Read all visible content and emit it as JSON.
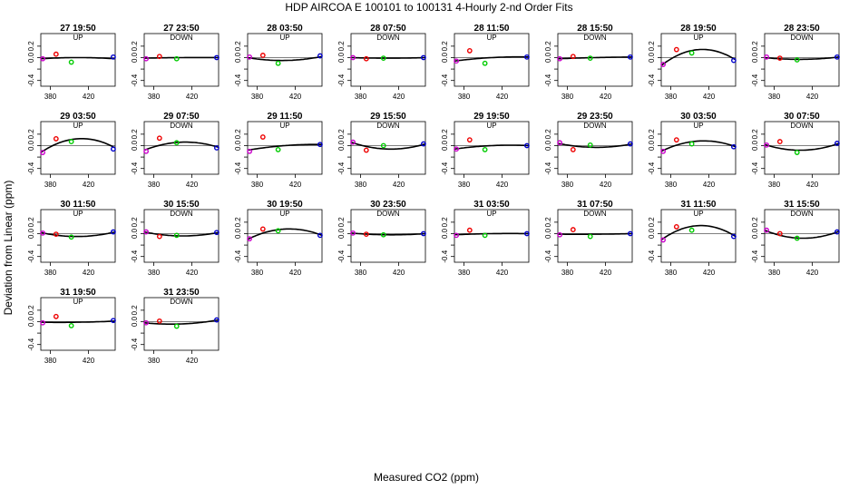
{
  "page_title": "HDP   AIRCOA E   100101 to 100131   4-Hourly 2-nd Order Fits",
  "ylabel": "Deviation from Linear (ppm)",
  "xlabel": "Measured CO2 (ppm)",
  "chart_data": {
    "type": "scatter",
    "title": "HDP   AIRCOA E   100101 to 100131   4-Hourly 2-nd Order Fits",
    "xlabel": "Measured CO2 (ppm)",
    "ylabel": "Deviation from Linear (ppm)",
    "xlim": [
      370,
      448
    ],
    "ylim": [
      -0.5,
      0.42
    ],
    "xticks": [
      380,
      420
    ],
    "xtick_labels": [
      "380",
      "420"
    ],
    "yticks": [
      -0.4,
      -0.2,
      0.0,
      0.2
    ],
    "ytick_labels": [
      "-0.4",
      "",
      "0.0",
      "0.2"
    ],
    "grid": false,
    "marker_colors": {
      "purple": "#cc00cc",
      "red": "#ee0000",
      "green": "#00cc00",
      "blue": "#0000cc"
    },
    "panels": [
      {
        "title": "27 19:50",
        "direction": "UP",
        "points": [
          [
            372,
            -0.02
          ],
          [
            386,
            0.06
          ],
          [
            402,
            -0.08
          ],
          [
            446,
            0.01
          ]
        ],
        "curve": [
          -0.02,
          0.0,
          -0.02
        ]
      },
      {
        "title": "27 23:50",
        "direction": "DOWN",
        "points": [
          [
            372,
            -0.02
          ],
          [
            386,
            0.02
          ],
          [
            404,
            -0.02
          ],
          [
            446,
            0.0
          ]
        ],
        "curve": [
          -0.01,
          0.0,
          0.0
        ]
      },
      {
        "title": "28 03:50",
        "direction": "UP",
        "points": [
          [
            372,
            0.01
          ],
          [
            386,
            0.04
          ],
          [
            402,
            -0.1
          ],
          [
            446,
            0.03
          ]
        ],
        "curve": [
          0.0,
          -0.05,
          0.02
        ]
      },
      {
        "title": "28 07:50",
        "direction": "DOWN",
        "points": [
          [
            372,
            0.0
          ],
          [
            386,
            -0.02
          ],
          [
            404,
            -0.01
          ],
          [
            446,
            0.0
          ]
        ],
        "curve": [
          0.0,
          -0.01,
          0.0
        ]
      },
      {
        "title": "28 11:50",
        "direction": "UP",
        "points": [
          [
            372,
            -0.06
          ],
          [
            386,
            0.12
          ],
          [
            402,
            -0.1
          ],
          [
            446,
            0.01
          ]
        ],
        "curve": [
          -0.06,
          0.0,
          0.01
        ]
      },
      {
        "title": "28 15:50",
        "direction": "DOWN",
        "points": [
          [
            372,
            -0.02
          ],
          [
            386,
            0.02
          ],
          [
            404,
            -0.01
          ],
          [
            446,
            0.01
          ]
        ],
        "curve": [
          -0.02,
          0.0,
          0.01
        ]
      },
      {
        "title": "28 19:50",
        "direction": "UP",
        "points": [
          [
            372,
            -0.12
          ],
          [
            386,
            0.14
          ],
          [
            402,
            0.08
          ],
          [
            446,
            -0.05
          ]
        ],
        "curve": [
          -0.14,
          0.14,
          -0.04
        ]
      },
      {
        "title": "28 23:50",
        "direction": "DOWN",
        "points": [
          [
            372,
            0.01
          ],
          [
            386,
            -0.01
          ],
          [
            404,
            -0.04
          ],
          [
            446,
            0.01
          ]
        ],
        "curve": [
          0.0,
          -0.03,
          0.01
        ]
      },
      {
        "title": "29 03:50",
        "direction": "UP",
        "points": [
          [
            372,
            -0.12
          ],
          [
            386,
            0.12
          ],
          [
            402,
            0.07
          ],
          [
            446,
            -0.06
          ]
        ],
        "curve": [
          -0.12,
          0.12,
          -0.04
        ]
      },
      {
        "title": "29 07:50",
        "direction": "DOWN",
        "points": [
          [
            372,
            -0.1
          ],
          [
            386,
            0.13
          ],
          [
            404,
            0.05
          ],
          [
            446,
            -0.04
          ]
        ],
        "curve": [
          -0.08,
          0.06,
          -0.03
        ]
      },
      {
        "title": "29 11:50",
        "direction": "UP",
        "points": [
          [
            372,
            -0.1
          ],
          [
            386,
            0.15
          ],
          [
            402,
            -0.07
          ],
          [
            446,
            0.02
          ]
        ],
        "curve": [
          -0.08,
          0.0,
          0.02
        ]
      },
      {
        "title": "29 15:50",
        "direction": "DOWN",
        "points": [
          [
            372,
            0.06
          ],
          [
            386,
            -0.08
          ],
          [
            404,
            0.0
          ],
          [
            446,
            0.03
          ]
        ],
        "curve": [
          0.06,
          -0.06,
          0.03
        ]
      },
      {
        "title": "29 19:50",
        "direction": "UP",
        "points": [
          [
            372,
            -0.06
          ],
          [
            386,
            0.1
          ],
          [
            402,
            -0.07
          ],
          [
            446,
            0.0
          ]
        ],
        "curve": [
          -0.06,
          0.0,
          0.0
        ]
      },
      {
        "title": "29 23:50",
        "direction": "DOWN",
        "points": [
          [
            372,
            0.05
          ],
          [
            386,
            -0.07
          ],
          [
            404,
            0.01
          ],
          [
            446,
            0.03
          ]
        ],
        "curve": [
          0.04,
          -0.03,
          0.03
        ]
      },
      {
        "title": "30 03:50",
        "direction": "UP",
        "points": [
          [
            372,
            -0.1
          ],
          [
            386,
            0.1
          ],
          [
            402,
            0.03
          ],
          [
            446,
            -0.02
          ]
        ],
        "curve": [
          -0.1,
          0.08,
          -0.02
        ]
      },
      {
        "title": "30 07:50",
        "direction": "DOWN",
        "points": [
          [
            372,
            0.01
          ],
          [
            386,
            0.07
          ],
          [
            404,
            -0.12
          ],
          [
            446,
            0.04
          ]
        ],
        "curve": [
          0.02,
          -0.08,
          0.04
        ]
      },
      {
        "title": "30 11:50",
        "direction": "UP",
        "points": [
          [
            372,
            0.01
          ],
          [
            386,
            -0.01
          ],
          [
            402,
            -0.06
          ],
          [
            446,
            0.03
          ]
        ],
        "curve": [
          0.02,
          -0.05,
          0.03
        ]
      },
      {
        "title": "30 15:50",
        "direction": "DOWN",
        "points": [
          [
            372,
            0.03
          ],
          [
            386,
            -0.05
          ],
          [
            404,
            -0.03
          ],
          [
            446,
            0.02
          ]
        ],
        "curve": [
          0.03,
          -0.04,
          0.02
        ]
      },
      {
        "title": "30 19:50",
        "direction": "UP",
        "points": [
          [
            372,
            -0.09
          ],
          [
            386,
            0.08
          ],
          [
            402,
            0.05
          ],
          [
            446,
            -0.03
          ]
        ],
        "curve": [
          -0.1,
          0.08,
          -0.03
        ]
      },
      {
        "title": "30 23:50",
        "direction": "DOWN",
        "points": [
          [
            372,
            0.01
          ],
          [
            386,
            -0.01
          ],
          [
            404,
            -0.02
          ],
          [
            446,
            0.0
          ]
        ],
        "curve": [
          0.01,
          -0.02,
          0.0
        ]
      },
      {
        "title": "31 03:50",
        "direction": "UP",
        "points": [
          [
            372,
            -0.03
          ],
          [
            386,
            0.06
          ],
          [
            402,
            -0.03
          ],
          [
            446,
            0.0
          ]
        ],
        "curve": [
          -0.02,
          0.0,
          0.0
        ]
      },
      {
        "title": "31 07:50",
        "direction": "DOWN",
        "points": [
          [
            372,
            -0.02
          ],
          [
            386,
            0.07
          ],
          [
            404,
            -0.05
          ],
          [
            446,
            0.0
          ]
        ],
        "curve": [
          -0.01,
          -0.01,
          0.0
        ]
      },
      {
        "title": "31 11:50",
        "direction": "UP",
        "points": [
          [
            372,
            -0.11
          ],
          [
            386,
            0.12
          ],
          [
            402,
            0.06
          ],
          [
            446,
            -0.05
          ]
        ],
        "curve": [
          -0.11,
          0.14,
          -0.05
        ]
      },
      {
        "title": "31 15:50",
        "direction": "DOWN",
        "points": [
          [
            372,
            0.06
          ],
          [
            386,
            0.0
          ],
          [
            404,
            -0.08
          ],
          [
            446,
            0.03
          ]
        ],
        "curve": [
          0.06,
          -0.08,
          0.04
        ]
      },
      {
        "title": "31 19:50",
        "direction": "UP",
        "points": [
          [
            372,
            -0.02
          ],
          [
            386,
            0.09
          ],
          [
            402,
            -0.07
          ],
          [
            446,
            0.02
          ]
        ],
        "curve": [
          -0.01,
          -0.01,
          0.01
        ]
      },
      {
        "title": "31 23:50",
        "direction": "DOWN",
        "points": [
          [
            372,
            -0.02
          ],
          [
            386,
            0.01
          ],
          [
            404,
            -0.08
          ],
          [
            446,
            0.03
          ]
        ],
        "curve": [
          -0.02,
          -0.04,
          0.03
        ]
      }
    ]
  }
}
